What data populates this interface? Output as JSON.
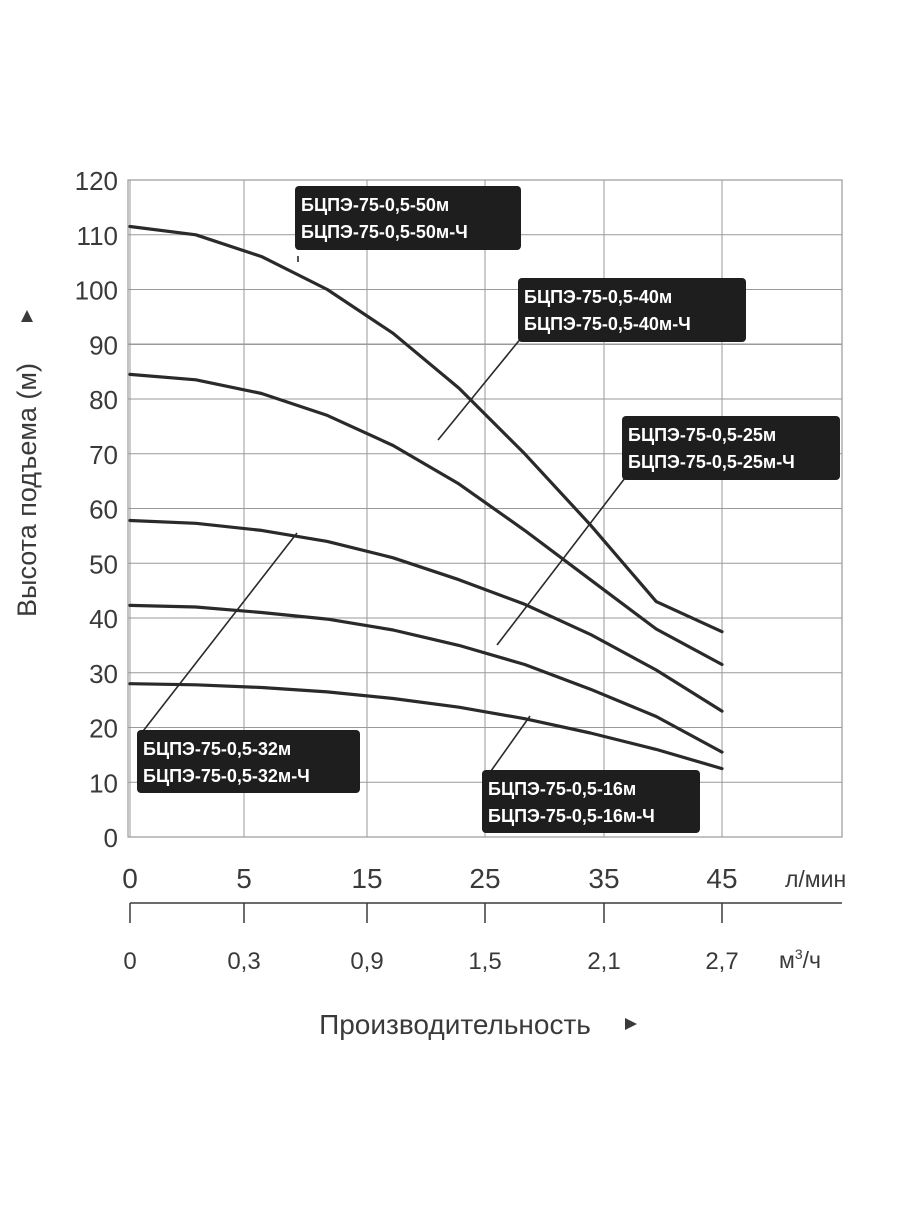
{
  "chart_data": {
    "type": "line",
    "ylabel": "Высота подъема (м)",
    "xlabel": "Производительность",
    "x_units": "л/мин",
    "x2_units": "м³/ч",
    "x2_units_base": "м",
    "x2_units_sup": "3",
    "x2_units_tail": "/ч",
    "ylim": [
      0,
      120
    ],
    "y_ticks": [
      0,
      10,
      20,
      30,
      40,
      50,
      60,
      70,
      80,
      90,
      100,
      110,
      120
    ],
    "xlim": [
      0,
      48
    ],
    "x_tick_labels": [
      "0",
      "5",
      "15",
      "25",
      "35",
      "45"
    ],
    "x2_tick_labels": [
      "0",
      "0,3",
      "0,9",
      "1,5",
      "2,1",
      "2,7"
    ],
    "grid": true,
    "series": [
      {
        "name": "БЦПЭ-75-0,5-50м / БЦПЭ-75-0,5-50м-Ч",
        "label_lines": [
          "БЦПЭ-75-0,5-50м",
          "БЦПЭ-75-0,5-50м-Ч"
        ],
        "points": [
          [
            0,
            111.5
          ],
          [
            5,
            110
          ],
          [
            10,
            106
          ],
          [
            15,
            100
          ],
          [
            20,
            92
          ],
          [
            25,
            82
          ],
          [
            30,
            70
          ],
          [
            35,
            57
          ],
          [
            40,
            43
          ],
          [
            45,
            37.5
          ]
        ]
      },
      {
        "name": "БЦПЭ-75-0,5-40м / БЦПЭ-75-0,5-40м-Ч",
        "label_lines": [
          "БЦПЭ-75-0,5-40м",
          "БЦПЭ-75-0,5-40м-Ч"
        ],
        "points": [
          [
            0,
            84.5
          ],
          [
            5,
            83.5
          ],
          [
            10,
            81
          ],
          [
            15,
            77
          ],
          [
            20,
            71.5
          ],
          [
            25,
            64.5
          ],
          [
            30,
            56
          ],
          [
            35,
            47
          ],
          [
            40,
            38
          ],
          [
            45,
            31.5
          ]
        ]
      },
      {
        "name": "БЦПЭ-75-0,5-25м / БЦПЭ-75-0,5-25м-Ч",
        "label_lines": [
          "БЦПЭ-75-0,5-25м",
          "БЦПЭ-75-0,5-25м-Ч"
        ],
        "points": [
          [
            0,
            57.8
          ],
          [
            5,
            57.3
          ],
          [
            10,
            56
          ],
          [
            15,
            54
          ],
          [
            20,
            51
          ],
          [
            25,
            47
          ],
          [
            30,
            42.5
          ],
          [
            35,
            37
          ],
          [
            40,
            30.5
          ],
          [
            45,
            23
          ]
        ]
      },
      {
        "name": "БЦПЭ-75-0,5-32м / БЦПЭ-75-0,5-32м-Ч",
        "label_lines": [
          "БЦПЭ-75-0,5-32м",
          "БЦПЭ-75-0,5-32м-Ч"
        ],
        "points": [
          [
            0,
            42.3
          ],
          [
            5,
            42
          ],
          [
            10,
            41
          ],
          [
            15,
            39.8
          ],
          [
            20,
            37.8
          ],
          [
            25,
            35
          ],
          [
            30,
            31.5
          ],
          [
            35,
            27
          ],
          [
            40,
            22
          ],
          [
            45,
            15.5
          ]
        ]
      },
      {
        "name": "БЦПЭ-75-0,5-16м / БЦПЭ-75-0,5-16м-Ч",
        "label_lines": [
          "БЦПЭ-75-0,5-16м",
          "БЦПЭ-75-0,5-16м-Ч"
        ],
        "points": [
          [
            0,
            28
          ],
          [
            5,
            27.8
          ],
          [
            10,
            27.3
          ],
          [
            15,
            26.5
          ],
          [
            20,
            25.3
          ],
          [
            25,
            23.7
          ],
          [
            30,
            21.6
          ],
          [
            35,
            19
          ],
          [
            40,
            16
          ],
          [
            45,
            12.5
          ]
        ]
      }
    ],
    "colors": {
      "curve": "#2a2a2a",
      "grid": "#9a9a9a",
      "label_bg": "#1e1e1e",
      "label_text": "#ffffff",
      "text": "#3a3a3a"
    }
  }
}
